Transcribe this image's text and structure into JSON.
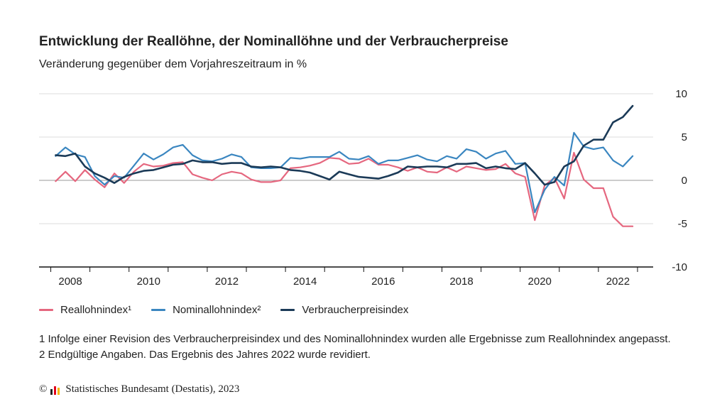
{
  "title": "Entwicklung der Reallöhne, der Nominallöhne und der Verbraucherpreise",
  "subtitle": "Veränderung gegenüber dem Vorjahreszeitraum in %",
  "footnote": "1 Infolge einer Revision des Verbraucherpreisindex und des Nominallohnindex wurden alle Ergebnisse zum Reallohnindex angepasst. 2 Endgültige Angaben. Das Ergebnis des Jahres 2022 wurde revidiert.",
  "source": {
    "copyright": "©",
    "logo_icon": "destatis-bar-logo-icon",
    "text": "Statistisches Bundesamt (Destatis), 2023"
  },
  "colors": {
    "real": "#e5677f",
    "nominal": "#3a86c0",
    "cpi": "#1b3a57"
  },
  "chart_data": {
    "type": "line",
    "ylim": [
      -10,
      10
    ],
    "yticks": [
      10,
      5,
      0,
      -5,
      -10
    ],
    "xticks": [
      "2008",
      "2010",
      "2012",
      "2014",
      "2016",
      "2018",
      "2020",
      "2022"
    ],
    "x": [
      "2008 Q1",
      "2008 Q2",
      "2008 Q3",
      "2008 Q4",
      "2009 Q1",
      "2009 Q2",
      "2009 Q3",
      "2009 Q4",
      "2010 Q1",
      "2010 Q2",
      "2010 Q3",
      "2010 Q4",
      "2011 Q1",
      "2011 Q2",
      "2011 Q3",
      "2011 Q4",
      "2012 Q1",
      "2012 Q2",
      "2012 Q3",
      "2012 Q4",
      "2013 Q1",
      "2013 Q2",
      "2013 Q3",
      "2013 Q4",
      "2014 Q1",
      "2014 Q2",
      "2014 Q3",
      "2014 Q4",
      "2015 Q1",
      "2015 Q2",
      "2015 Q3",
      "2015 Q4",
      "2016 Q1",
      "2016 Q2",
      "2016 Q3",
      "2016 Q4",
      "2017 Q1",
      "2017 Q2",
      "2017 Q3",
      "2017 Q4",
      "2018 Q1",
      "2018 Q2",
      "2018 Q3",
      "2018 Q4",
      "2019 Q1",
      "2019 Q2",
      "2019 Q3",
      "2019 Q4",
      "2020 Q1",
      "2020 Q2",
      "2020 Q3",
      "2020 Q4",
      "2021 Q1",
      "2021 Q2",
      "2021 Q3",
      "2021 Q4",
      "2022 Q1",
      "2022 Q2",
      "2022 Q3",
      "2022 Q4"
    ],
    "series": [
      {
        "name": "Reallohnindex¹",
        "key": "real",
        "values": [
          -0.1,
          1.0,
          -0.1,
          1.2,
          0.1,
          -0.8,
          0.8,
          -0.3,
          1.0,
          1.9,
          1.6,
          1.7,
          2.0,
          2.1,
          0.7,
          0.3,
          0.0,
          0.7,
          1.0,
          0.8,
          0.1,
          -0.2,
          -0.2,
          0.0,
          1.4,
          1.5,
          1.7,
          2.0,
          2.6,
          2.5,
          1.9,
          2.0,
          2.5,
          1.8,
          1.8,
          1.5,
          1.1,
          1.5,
          1.0,
          0.9,
          1.5,
          1.0,
          1.6,
          1.4,
          1.2,
          1.3,
          1.9,
          0.8,
          0.4,
          -4.6,
          -0.6,
          0.3,
          -2.1,
          3.2,
          0.1,
          -0.9,
          -0.9,
          -4.2,
          -5.3,
          -5.3
        ]
      },
      {
        "name": "Nominallohnindex²",
        "key": "nominal",
        "values": [
          2.8,
          3.8,
          3.0,
          2.7,
          0.5,
          -0.5,
          0.5,
          0.3,
          1.7,
          3.1,
          2.4,
          3.0,
          3.8,
          4.1,
          2.9,
          2.3,
          2.2,
          2.5,
          3.0,
          2.7,
          1.5,
          1.4,
          1.4,
          1.5,
          2.6,
          2.5,
          2.7,
          2.7,
          2.7,
          3.3,
          2.5,
          2.4,
          2.8,
          1.9,
          2.3,
          2.3,
          2.6,
          2.9,
          2.4,
          2.2,
          2.8,
          2.5,
          3.6,
          3.3,
          2.5,
          3.1,
          3.4,
          1.9,
          2.0,
          -3.7,
          -1.1,
          0.4,
          -0.6,
          5.5,
          3.9,
          3.6,
          3.8,
          2.3,
          1.6,
          2.8
        ]
      },
      {
        "name": "Verbraucherpreisindex",
        "key": "cpi",
        "values": [
          2.9,
          2.8,
          3.1,
          1.6,
          0.8,
          0.3,
          -0.3,
          0.4,
          0.8,
          1.1,
          1.2,
          1.5,
          1.8,
          1.9,
          2.3,
          2.1,
          2.1,
          1.9,
          2.0,
          2.0,
          1.6,
          1.5,
          1.6,
          1.5,
          1.2,
          1.1,
          0.9,
          0.5,
          0.1,
          1.0,
          0.7,
          0.4,
          0.3,
          0.2,
          0.5,
          0.9,
          1.6,
          1.5,
          1.6,
          1.6,
          1.5,
          1.9,
          1.9,
          2.0,
          1.4,
          1.6,
          1.4,
          1.3,
          2.0,
          0.8,
          -0.5,
          -0.2,
          1.6,
          2.2,
          4.0,
          4.7,
          4.7,
          6.7,
          7.3,
          8.6
        ]
      }
    ]
  }
}
